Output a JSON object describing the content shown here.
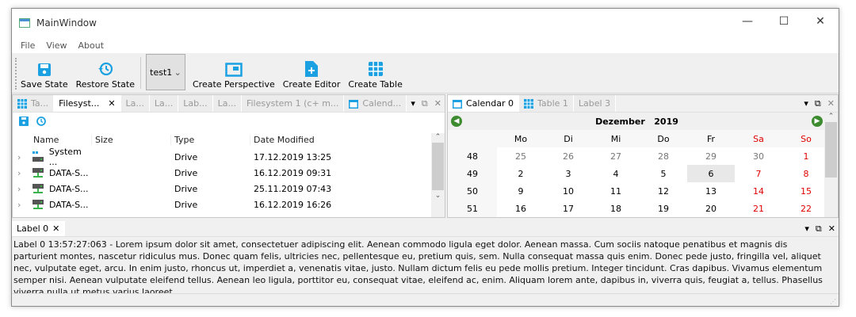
{
  "window": {
    "title": "MainWindow",
    "controls": [
      "—",
      "☐",
      "✕"
    ]
  },
  "menu": [
    "File",
    "View",
    "About"
  ],
  "toolbar": {
    "save": "Save State",
    "restore": "Restore State",
    "perspective": "test1",
    "create_perspective": "Create Perspective",
    "create_editor": "Create Editor",
    "create_table": "Create Table"
  },
  "left_dock": {
    "tabs": [
      "Ta...",
      "Filesyst...",
      "La...",
      "La...",
      "Lab...",
      "La...",
      "Filesystem 1 (c+ m...",
      "Calend..."
    ],
    "active_tab": 1,
    "columns": [
      "Name",
      "Size",
      "Type",
      "Date Modified"
    ],
    "rows": [
      {
        "name": "System ...",
        "size": "",
        "type": "Drive",
        "date": "17.12.2019 13:25"
      },
      {
        "name": "DATA-S...",
        "size": "",
        "type": "Drive",
        "date": "16.12.2019 09:31"
      },
      {
        "name": "DATA-S...",
        "size": "",
        "type": "Drive",
        "date": "25.11.2019 07:43"
      },
      {
        "name": "DATA-S...",
        "size": "",
        "type": "Drive",
        "date": "16.12.2019 16:26"
      }
    ]
  },
  "right_dock": {
    "tabs": [
      "Calendar 0",
      "Table 1",
      "Label 3"
    ],
    "active_tab": 0,
    "month": "Dezember",
    "year": "2019",
    "days": [
      "Mo",
      "Di",
      "Mi",
      "Do",
      "Fr",
      "Sa",
      "So"
    ],
    "weeks": [
      {
        "wk": "48",
        "d": [
          "25",
          "26",
          "27",
          "28",
          "29",
          "30",
          "1"
        ]
      },
      {
        "wk": "49",
        "d": [
          "2",
          "3",
          "4",
          "5",
          "6",
          "7",
          "8"
        ]
      },
      {
        "wk": "50",
        "d": [
          "9",
          "10",
          "11",
          "12",
          "13",
          "14",
          "15"
        ]
      },
      {
        "wk": "51",
        "d": [
          "16",
          "17",
          "18",
          "19",
          "20",
          "21",
          "22"
        ]
      }
    ],
    "selected_day": "6",
    "weekend_color": "#e00000",
    "other_month_color": "#777777"
  },
  "bottom_dock": {
    "tab": "Label 0",
    "text": "Label 0 13:57:27:063 - Lorem ipsum dolor sit amet, consectetuer adipiscing elit. Aenean commodo ligula eget dolor. Aenean massa. Cum sociis natoque penatibus et magnis dis parturient montes, nascetur ridiculus mus. Donec quam felis, ultricies nec, pellentesque eu, pretium quis, sem. Nulla consequat massa quis enim. Donec pede justo, fringilla vel, aliquet nec, vulputate eget, arcu. In enim justo, rhoncus ut, imperdiet a, venenatis vitae, justo. Nullam dictum felis eu pede mollis pretium. Integer tincidunt. Cras dapibus. Vivamus elementum semper nisi. Aenean vulputate eleifend tellus. Aenean leo ligula, porttitor eu, consequat vitae, eleifend ac, enim. Aliquam lorem ante, dapibus in, viverra quis, feugiat a, tellus. Phasellus viverra nulla ut metus varius laoreet."
  },
  "colors": {
    "accent": "#1ba1e2",
    "drive_green": "#3cb34a"
  }
}
